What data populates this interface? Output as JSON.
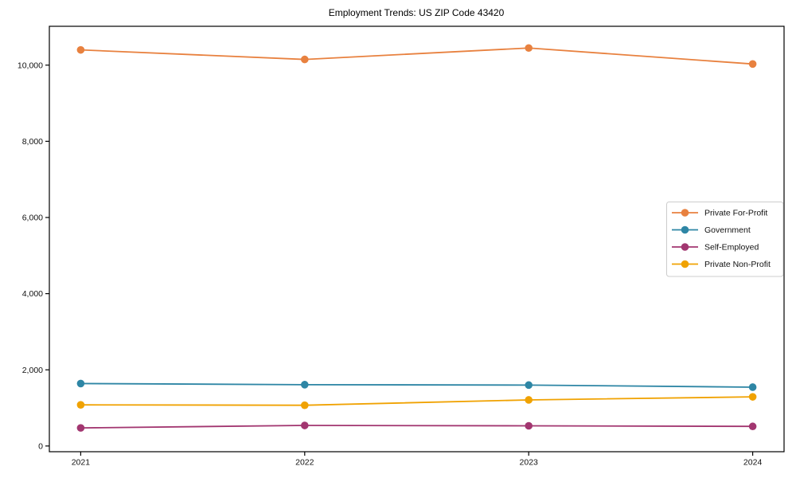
{
  "chart_data": {
    "type": "line",
    "title": "Employment Trends: US ZIP Code 43420",
    "xlabel": "",
    "ylabel": "",
    "x": [
      2021,
      2022,
      2023,
      2024
    ],
    "x_tick_labels": [
      "2021",
      "2022",
      "2023",
      "2024"
    ],
    "y_ticks": [
      {
        "value": 0,
        "label": "0"
      },
      {
        "value": 2000,
        "label": "2,000"
      },
      {
        "value": 4000,
        "label": "4,000"
      },
      {
        "value": 6000,
        "label": "6,000"
      },
      {
        "value": 8000,
        "label": "8,000"
      },
      {
        "value": 10000,
        "label": "10,000"
      }
    ],
    "xlim": [
      2020.86,
      2024.14
    ],
    "ylim": [
      -150,
      11020
    ],
    "grid": false,
    "legend_position": "center right",
    "series": [
      {
        "name": "Private For-Profit",
        "color": "#e8813f",
        "values": [
          10400,
          10150,
          10450,
          10030
        ]
      },
      {
        "name": "Government",
        "color": "#2e86a5",
        "values": [
          1640,
          1610,
          1600,
          1545
        ]
      },
      {
        "name": "Self-Employed",
        "color": "#a23670",
        "values": [
          475,
          540,
          530,
          515
        ]
      },
      {
        "name": "Private Non-Profit",
        "color": "#f0a202",
        "values": [
          1080,
          1070,
          1210,
          1290
        ]
      }
    ],
    "axis_color": "#000000",
    "background_color": "#ffffff",
    "legend_border_color": "#cccccc"
  }
}
